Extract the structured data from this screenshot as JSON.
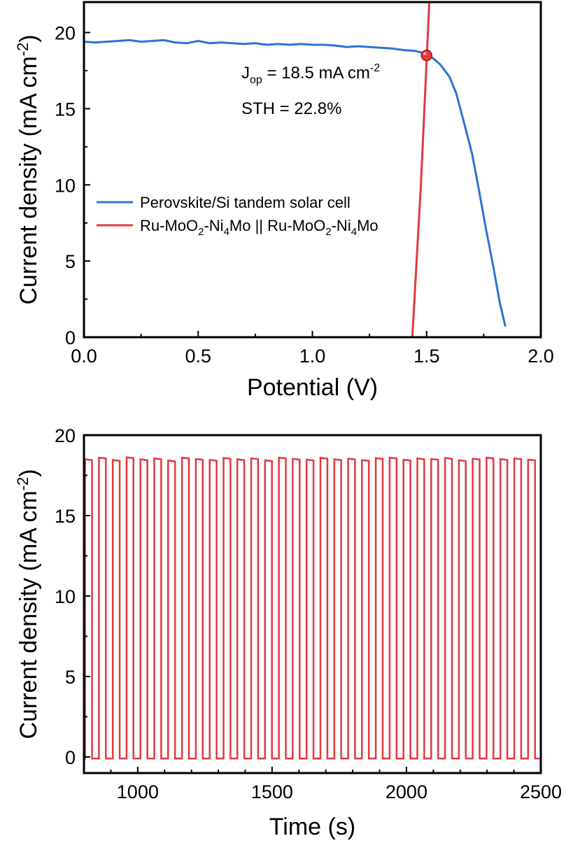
{
  "colors": {
    "blue": "#2a73d4",
    "red": "#e0393e",
    "axis": "#000000"
  },
  "chart_data": [
    {
      "type": "line",
      "xlabel": "Potential (V)",
      "ylabel": "Current density (mA cm",
      "ylabel_sup": "-2",
      "ylabel_end": ")",
      "xlim": [
        0.0,
        2.0
      ],
      "ylim": [
        0,
        22
      ],
      "xticks": [
        0.0,
        0.5,
        1.0,
        1.5,
        2.0
      ],
      "xtick_labels": [
        "0.0",
        "0.5",
        "1.0",
        "1.5",
        "2.0"
      ],
      "yticks": [
        0,
        5,
        10,
        15,
        20
      ],
      "ytick_labels": [
        "0",
        "5",
        "10",
        "15",
        "20"
      ],
      "grid": false,
      "legend_position": "center-left",
      "series": [
        {
          "name": "Perovskite/Si tandem solar cell",
          "color": "#2a73d4",
          "x": [
            0.0,
            0.05,
            0.1,
            0.15,
            0.2,
            0.25,
            0.3,
            0.35,
            0.4,
            0.45,
            0.5,
            0.55,
            0.6,
            0.65,
            0.7,
            0.75,
            0.8,
            0.85,
            0.9,
            0.95,
            1.0,
            1.05,
            1.1,
            1.15,
            1.2,
            1.25,
            1.3,
            1.35,
            1.4,
            1.45,
            1.5,
            1.53,
            1.56,
            1.6,
            1.63,
            1.66,
            1.7,
            1.73,
            1.76,
            1.79,
            1.82,
            1.845
          ],
          "y": [
            19.4,
            19.35,
            19.4,
            19.45,
            19.5,
            19.4,
            19.45,
            19.5,
            19.35,
            19.3,
            19.45,
            19.3,
            19.35,
            19.3,
            19.25,
            19.3,
            19.2,
            19.25,
            19.2,
            19.25,
            19.2,
            19.2,
            19.15,
            19.05,
            19.1,
            19.05,
            19.0,
            18.95,
            18.85,
            18.8,
            18.6,
            18.3,
            17.9,
            17.1,
            16.0,
            14.3,
            12.0,
            9.6,
            7.1,
            4.8,
            2.3,
            0.7
          ]
        },
        {
          "name": "Ru-MoO2-Ni4Mo || Ru-MoO2-Ni4Mo",
          "color": "#e0393e",
          "x": [
            1.43,
            1.475,
            1.515
          ],
          "y": [
            -2,
            10,
            23
          ]
        }
      ],
      "legend": [
        {
          "label": "Perovskite/Si tandem solar cell",
          "color": "#2a73d4"
        },
        {
          "label_parts": [
            "Ru-MoO",
            "2",
            "-Ni",
            "4",
            "Mo || Ru-MoO",
            "2",
            "-Ni",
            "4",
            "Mo"
          ],
          "color": "#e0393e"
        }
      ],
      "marker": {
        "x": 1.5,
        "y": 18.5,
        "color": "#e0393e"
      },
      "annotations": {
        "jop_main": "J",
        "jop_sub": "op",
        "jop_rest": " = 18.5 mA cm",
        "jop_sup": "-2",
        "sth": "STH = 22.8%"
      }
    },
    {
      "type": "line",
      "xlabel": "Time (s)",
      "ylabel": "Current density (mA cm",
      "ylabel_sup": "-2",
      "ylabel_end": ")",
      "xlim": [
        800,
        2500
      ],
      "ylim": [
        -1,
        20
      ],
      "xticks": [
        1000,
        1500,
        2000,
        2500
      ],
      "xtick_labels": [
        "1000",
        "1500",
        "2000",
        "2500"
      ],
      "yticks": [
        0,
        5,
        10,
        15,
        20
      ],
      "ytick_labels": [
        "0",
        "5",
        "10",
        "15",
        "20"
      ],
      "grid": false,
      "series": [
        {
          "name": "",
          "color": "#e0393e",
          "waveform": "square",
          "t_start": 800,
          "t_end": 2500,
          "cycles": 33,
          "on_value": 18.5,
          "off_value": -0.1
        }
      ]
    }
  ]
}
